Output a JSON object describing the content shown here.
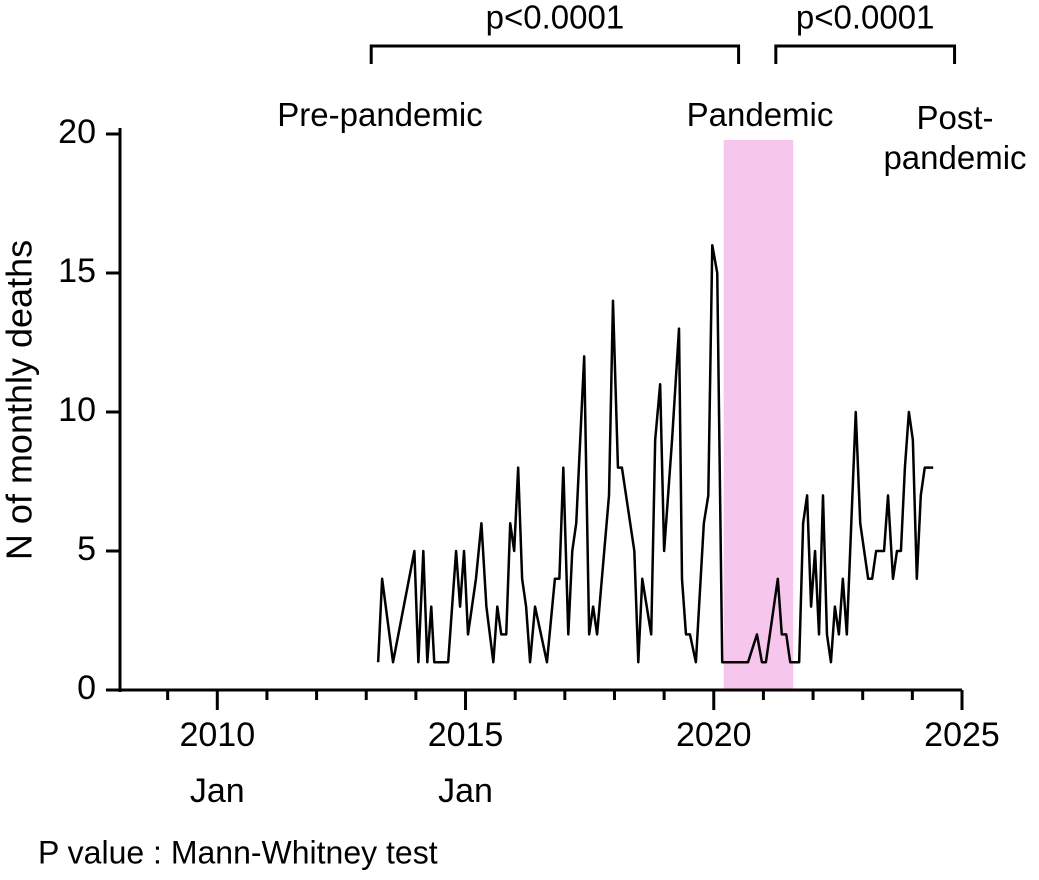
{
  "chart_data": {
    "type": "line",
    "ylabel": "N of monthly deaths",
    "footnote": "P value : Mann-Whitney test",
    "periods": [
      "Pre-pandemic",
      "Pandemic",
      "Post-\npandemic"
    ],
    "brackets": [
      {
        "label": "p<0.0001",
        "x": [
          2013.1,
          2020.5
        ]
      },
      {
        "label": "p<0.0001",
        "x": [
          2021.25,
          2024.85
        ]
      }
    ],
    "shaded_region": {
      "xlim": [
        2020.2,
        2021.6
      ],
      "color": "#f7c6ec"
    },
    "color": "#000000",
    "x": [
      2013.24,
      2013.32,
      2013.54,
      2013.97,
      2014.05,
      2014.15,
      2014.23,
      2014.31,
      2014.37,
      2014.65,
      2014.81,
      2014.89,
      2014.97,
      2015.05,
      2015.21,
      2015.32,
      2015.42,
      2015.56,
      2015.64,
      2015.72,
      2015.82,
      2015.9,
      2015.98,
      2016.06,
      2016.14,
      2016.22,
      2016.3,
      2016.4,
      2016.64,
      2016.8,
      2016.89,
      2016.97,
      2017.07,
      2017.15,
      2017.23,
      2017.39,
      2017.49,
      2017.57,
      2017.65,
      2017.89,
      2017.97,
      2018.07,
      2018.15,
      2018.4,
      2018.48,
      2018.56,
      2018.74,
      2018.82,
      2018.92,
      2019.0,
      2019.16,
      2019.3,
      2019.36,
      2019.44,
      2019.52,
      2019.64,
      2019.8,
      2019.89,
      2019.97,
      2020.07,
      2020.17,
      2020.69,
      2020.87,
      2020.97,
      2021.05,
      2021.21,
      2021.29,
      2021.37,
      2021.46,
      2021.54,
      2021.72,
      2021.8,
      2021.88,
      2021.96,
      2022.04,
      2022.12,
      2022.2,
      2022.28,
      2022.36,
      2022.44,
      2022.52,
      2022.6,
      2022.68,
      2022.86,
      2022.95,
      2023.11,
      2023.19,
      2023.27,
      2023.43,
      2023.51,
      2023.61,
      2023.69,
      2023.77,
      2023.85,
      2023.93,
      2024.01,
      2024.09,
      2024.17,
      2024.25,
      2024.42
    ],
    "values": [
      1,
      4,
      1,
      5,
      1,
      5,
      1,
      3,
      1,
      1,
      5,
      3,
      5,
      2,
      4,
      6,
      3,
      1,
      3,
      2,
      2,
      6,
      5,
      8,
      4,
      3,
      1,
      3,
      1,
      4,
      4,
      8,
      2,
      5,
      6,
      12,
      2,
      3,
      2,
      7,
      14,
      8,
      8,
      5,
      1,
      4,
      2,
      9,
      11,
      5,
      9,
      13,
      4,
      2,
      2,
      1,
      6,
      7,
      16,
      15,
      1,
      1,
      2,
      1,
      1,
      3,
      4,
      2,
      2,
      1,
      1,
      6,
      7,
      3,
      5,
      2,
      7,
      2,
      1,
      3,
      2,
      4,
      2,
      10,
      6,
      4,
      4,
      5,
      5,
      7,
      4,
      5,
      5,
      8,
      10,
      9,
      4,
      7,
      8,
      8
    ],
    "xlim": [
      2008,
      2025
    ],
    "xticks": [
      {
        "value": 2010,
        "label": "2010",
        "sublabel": "Jan"
      },
      {
        "value": 2015,
        "label": "2015",
        "sublabel": "Jan"
      },
      2020,
      2025
    ],
    "xminor_ticks": [
      2009,
      2011,
      2012,
      2013,
      2014,
      2016,
      2017,
      2018,
      2019,
      2021,
      2022,
      2023,
      2024
    ],
    "ylim": [
      0,
      20
    ],
    "yticks": [
      0,
      5,
      10,
      15,
      20
    ]
  }
}
